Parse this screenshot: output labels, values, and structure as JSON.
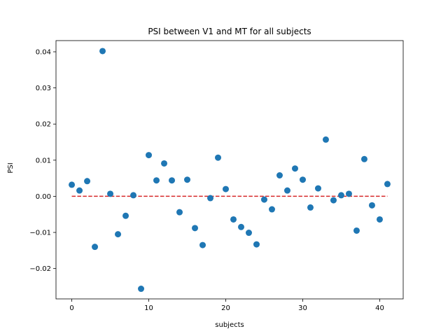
{
  "chart_data": {
    "type": "scatter",
    "title": "PSI between V1 and MT for all subjects",
    "xlabel": "subjects",
    "ylabel": "PSI",
    "xlim": [
      -2.05,
      43.05
    ],
    "ylim": [
      -0.0284,
      0.0431
    ],
    "xticks": [
      0,
      10,
      20,
      30,
      40
    ],
    "xtick_labels": [
      "0",
      "10",
      "20",
      "30",
      "40"
    ],
    "yticks": [
      -0.02,
      -0.01,
      0.0,
      0.01,
      0.02,
      0.03,
      0.04
    ],
    "ytick_labels": [
      "−0.02",
      "−0.01",
      "0.00",
      "0.01",
      "0.02",
      "0.03",
      "0.04"
    ],
    "grid": false,
    "legend": false,
    "colors": {
      "points": "#1f77b4",
      "reference_line": "#d62728",
      "axes": "#000000"
    },
    "series": [
      {
        "x": [
          0,
          1,
          2,
          3,
          4,
          5,
          6,
          7,
          8,
          9,
          10,
          11,
          12,
          13,
          14,
          15,
          16,
          17,
          18,
          19,
          20,
          21,
          22,
          23,
          24,
          25,
          26,
          27,
          28,
          29,
          30,
          31,
          32,
          33,
          34,
          35,
          36,
          37,
          38,
          39,
          40,
          41
        ],
        "y": [
          0.0032,
          0.0016,
          0.0042,
          -0.014,
          0.0402,
          0.0007,
          -0.0105,
          -0.0054,
          0.0003,
          -0.0256,
          0.0114,
          0.0044,
          0.0091,
          0.0044,
          -0.0044,
          0.0046,
          -0.0088,
          -0.0135,
          -0.0005,
          0.0107,
          0.002,
          -0.0064,
          -0.0085,
          -0.0101,
          -0.0133,
          -0.0009,
          -0.0036,
          0.0058,
          0.0016,
          0.0077,
          0.0046,
          -0.0031,
          0.0022,
          0.0157,
          -0.0011,
          0.0003,
          0.0007,
          -0.0095,
          0.0103,
          -0.0025,
          -0.0064,
          0.0034
        ]
      }
    ],
    "reference_line": {
      "y": 0.0,
      "x_from": 0,
      "x_to": 41,
      "style": "dashed"
    }
  }
}
